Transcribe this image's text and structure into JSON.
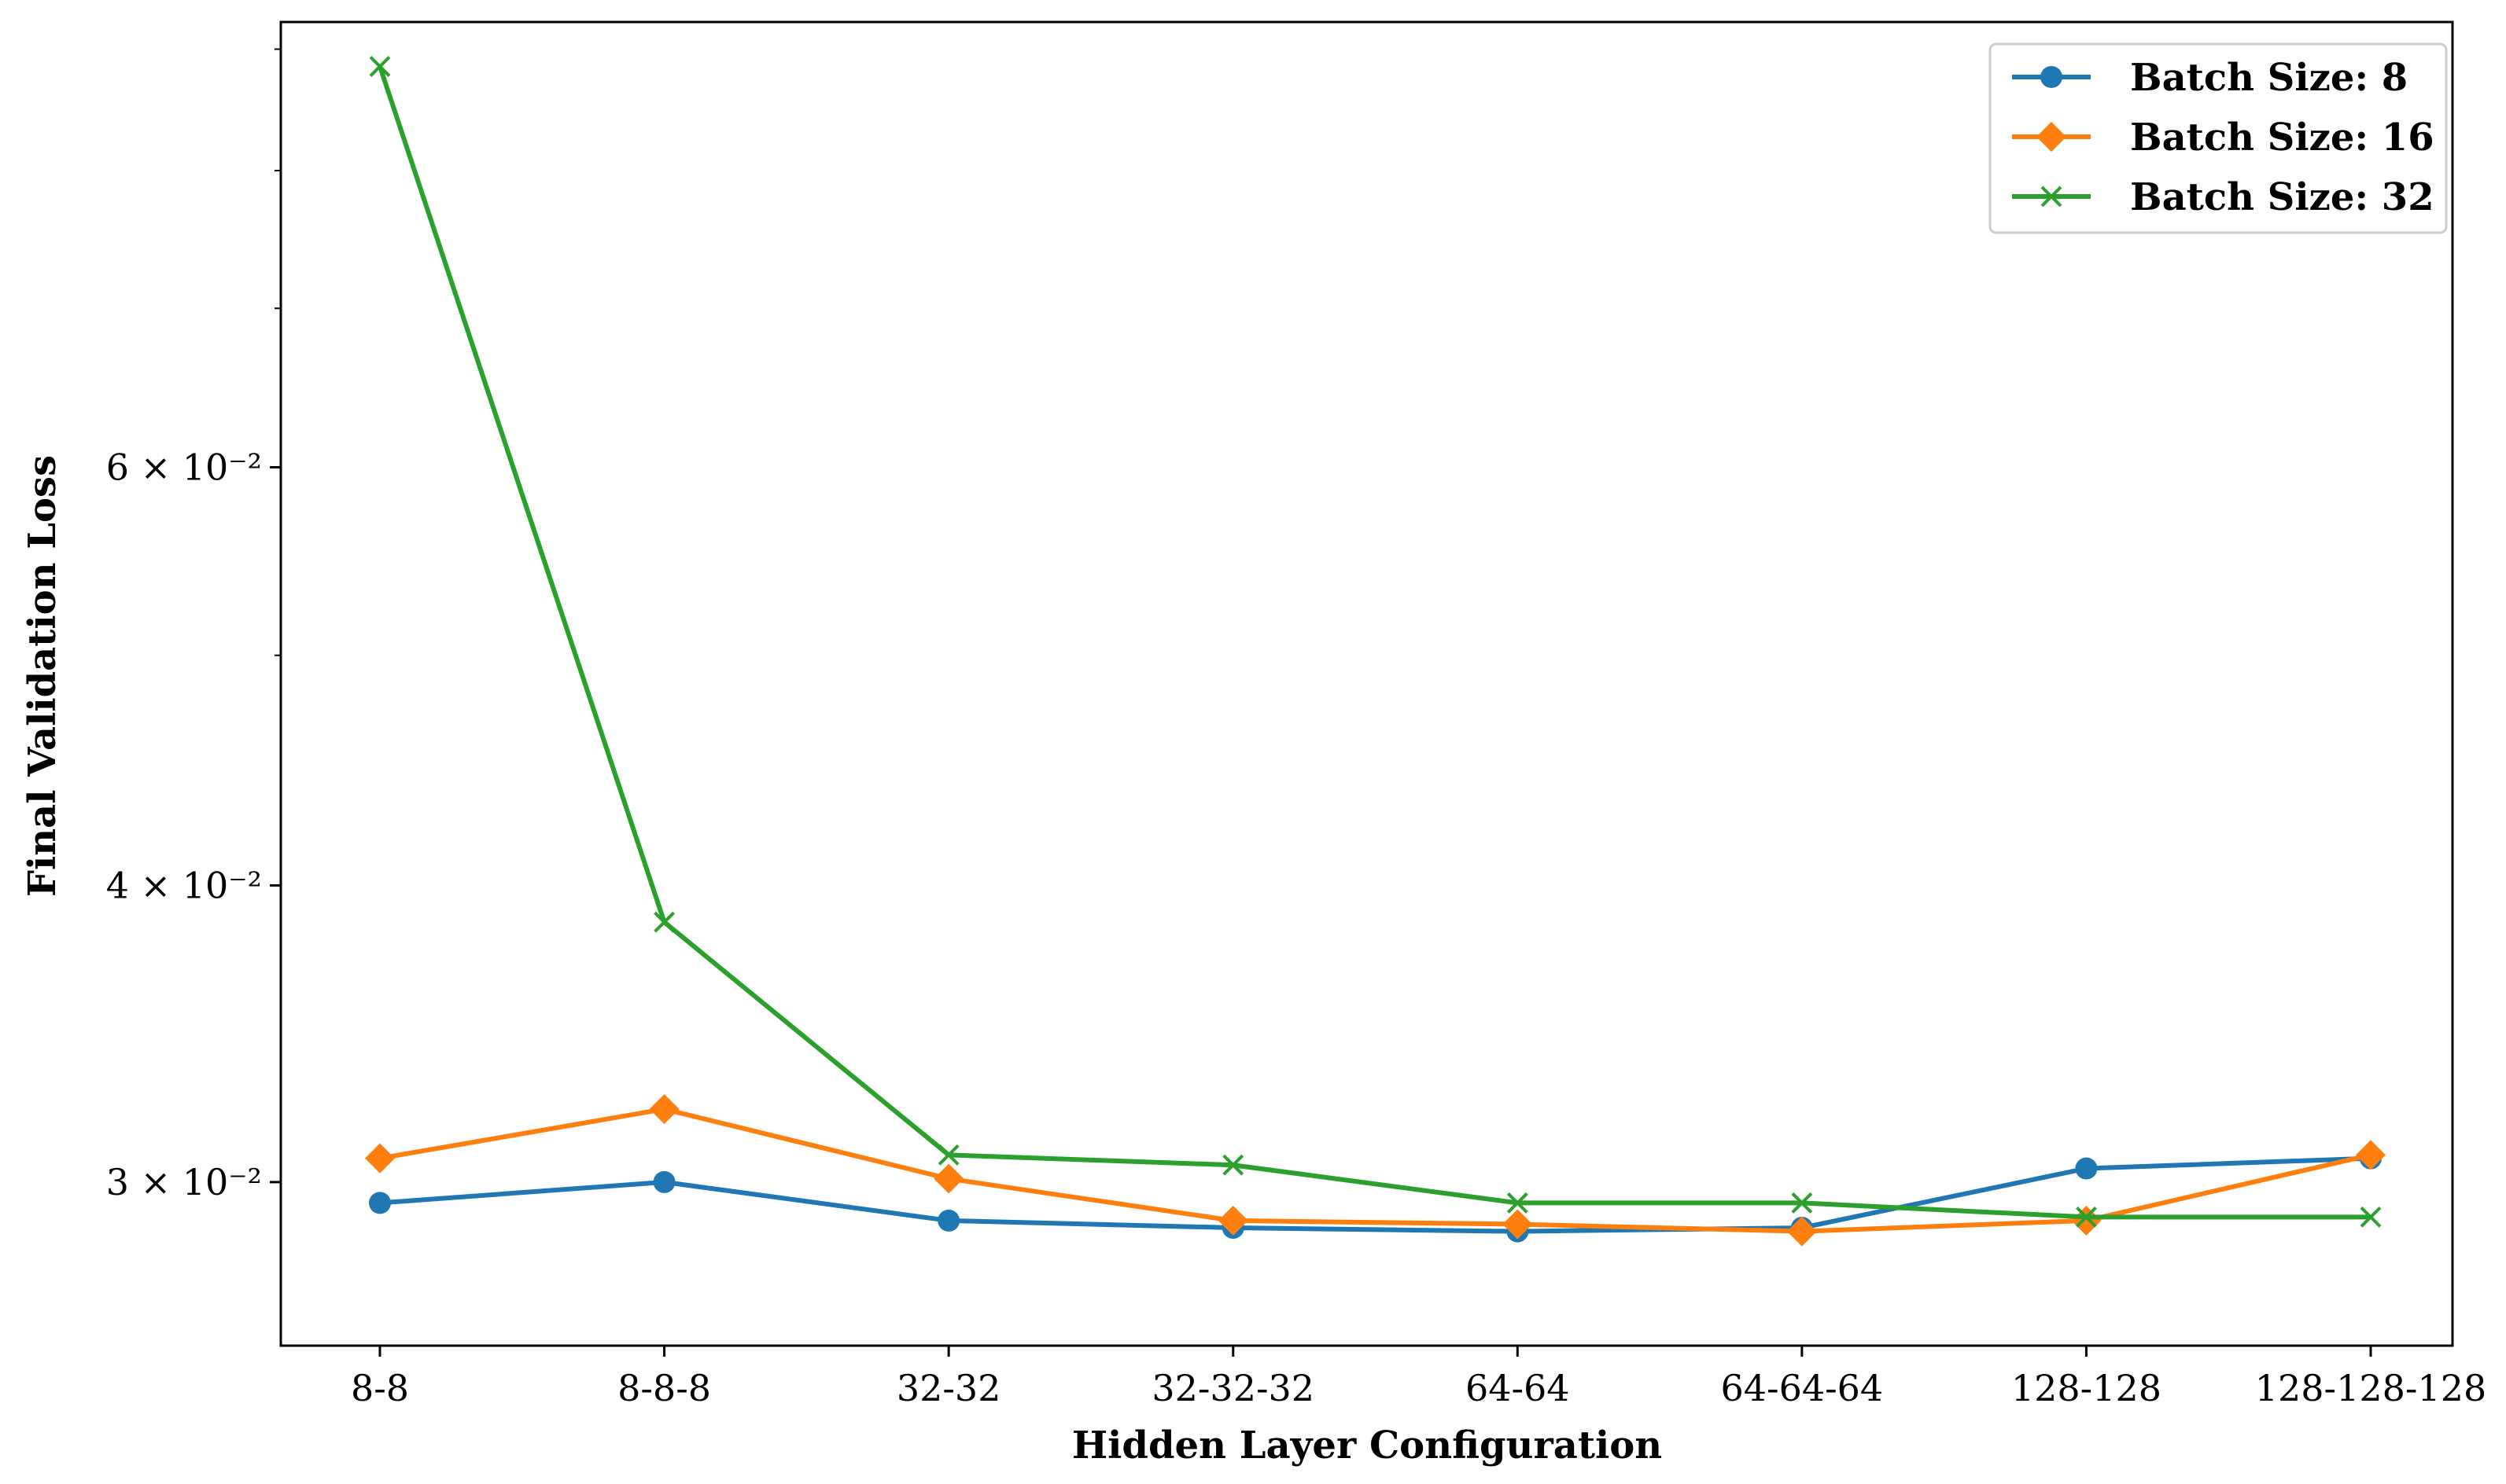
{
  "chart_data": {
    "type": "line",
    "xlabel": "Hidden Layer Configuration",
    "ylabel": "Final Validation Loss",
    "yscale": "log",
    "ylim": [
      0.0256,
      0.0924
    ],
    "categories": [
      "8-8",
      "8-8-8",
      "32-32",
      "32-32-32",
      "64-64",
      "64-64-64",
      "128-128",
      "128-128-128"
    ],
    "yticks": [
      {
        "value": 0.03,
        "label": "3 × 10⁻²"
      },
      {
        "value": 0.04,
        "label": "4 × 10⁻²"
      },
      {
        "value": 0.06,
        "label": "6 × 10⁻²"
      }
    ],
    "minor_yticks": [
      0.05,
      0.07,
      0.08,
      0.09
    ],
    "grid": false,
    "legend_position": "top-right",
    "series": [
      {
        "name": "Batch Size: 8",
        "color": "#1f77b4",
        "marker": "circle",
        "values": [
          0.0294,
          0.03,
          0.0289,
          0.0287,
          0.0286,
          0.0287,
          0.0304,
          0.0307
        ]
      },
      {
        "name": "Batch Size: 16",
        "color": "#ff7f0e",
        "marker": "diamond",
        "values": [
          0.0307,
          0.0322,
          0.0301,
          0.0289,
          0.0288,
          0.0286,
          0.0289,
          0.0308
        ]
      },
      {
        "name": "Batch Size: 32",
        "color": "#2ca02c",
        "marker": "x",
        "values": [
          0.0885,
          0.0386,
          0.0308,
          0.0305,
          0.0294,
          0.0294,
          0.029,
          0.029
        ]
      }
    ]
  }
}
